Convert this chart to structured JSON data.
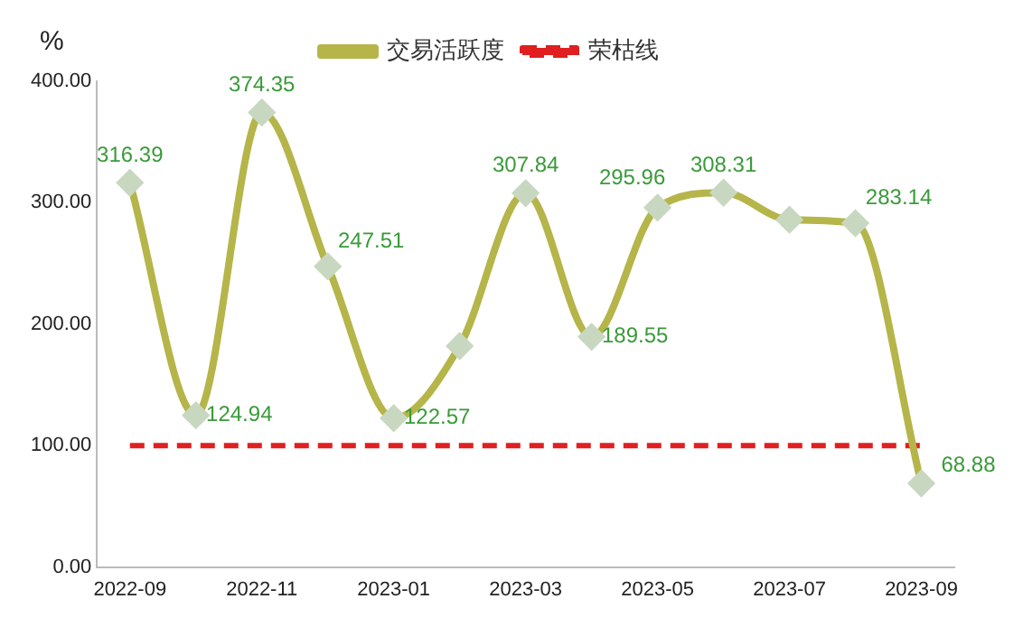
{
  "chart_data": {
    "type": "line",
    "ylabel": "%",
    "categories": [
      "2022-09",
      null,
      "2022-11",
      null,
      "2023-01",
      null,
      "2023-03",
      null,
      "2023-05",
      null,
      "2023-07",
      null,
      "2023-09"
    ],
    "series": [
      {
        "name": "交易活跃度",
        "color": "#b5b54a",
        "values": [
          316.39,
          124.94,
          374.35,
          247.51,
          122.57,
          182,
          307.84,
          189.55,
          295.96,
          308.31,
          286,
          283.14,
          68.88
        ],
        "value_labels": [
          "316.39",
          "124.94",
          "374.35",
          "247.51",
          "122.57",
          null,
          "307.84",
          "189.55",
          "295.96",
          "308.31",
          null,
          "283.14",
          "68.88"
        ]
      },
      {
        "name": "荣枯线",
        "color": "#e02020",
        "line_style": "dashed",
        "marker": "none",
        "values": [
          100,
          100,
          100,
          100,
          100,
          100,
          100,
          100,
          100,
          100,
          100,
          100,
          100
        ]
      }
    ],
    "ylim": [
      0,
      400
    ],
    "yticks": [
      {
        "value": 0,
        "label": "0.00"
      },
      {
        "value": 100,
        "label": "100.00"
      },
      {
        "value": 200,
        "label": "200.00"
      },
      {
        "value": 300,
        "label": "300.00"
      },
      {
        "value": 400,
        "label": "400.00"
      }
    ],
    "grid": false,
    "legend": "top",
    "marker": "diamond",
    "line_style": "solid"
  }
}
